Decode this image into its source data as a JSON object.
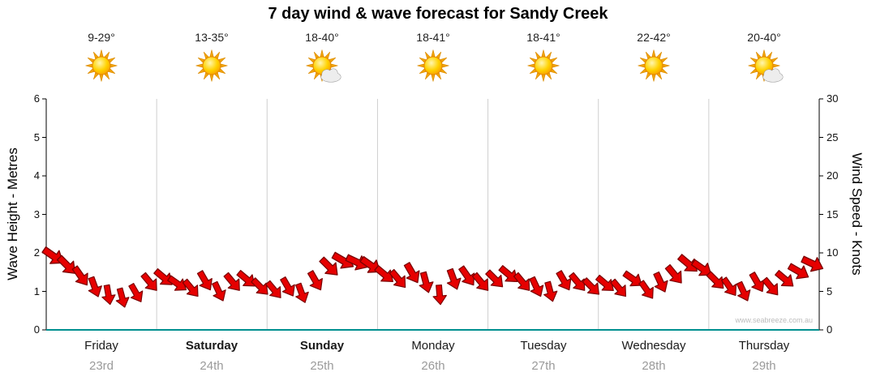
{
  "title": "7 day wind & wave forecast for Sandy Creek",
  "watermark": "www.seabreeze.com.au",
  "days": [
    {
      "name": "Friday",
      "date": "23rd",
      "temp": "9-29°",
      "icon": "sunny",
      "bold": false
    },
    {
      "name": "Saturday",
      "date": "24th",
      "temp": "13-35°",
      "icon": "sunny",
      "bold": true
    },
    {
      "name": "Sunday",
      "date": "25th",
      "temp": "18-40°",
      "icon": "partly-cloudy",
      "bold": true
    },
    {
      "name": "Monday",
      "date": "26th",
      "temp": "18-41°",
      "icon": "sunny",
      "bold": false
    },
    {
      "name": "Tuesday",
      "date": "27th",
      "temp": "18-41°",
      "icon": "sunny",
      "bold": false
    },
    {
      "name": "Wednesday",
      "date": "28th",
      "temp": "22-42°",
      "icon": "sunny",
      "bold": false
    },
    {
      "name": "Thursday",
      "date": "29th",
      "temp": "20-40°",
      "icon": "partly-cloudy",
      "bold": false
    }
  ],
  "chart_data": {
    "type": "scatter",
    "subtype": "wind-direction-arrows",
    "title": "7 day wind & wave forecast for Sandy Creek",
    "x_axis": {
      "categories": [
        "Friday 23rd",
        "Saturday 24th",
        "Sunday 25th",
        "Monday 26th",
        "Tuesday 27th",
        "Wednesday 28th",
        "Thursday 29th"
      ],
      "points_per_day": 8
    },
    "left_axis": {
      "label": "Wave Height - Metres",
      "range": [
        0,
        6
      ],
      "ticks": [
        0,
        1,
        2,
        3,
        4,
        5,
        6
      ]
    },
    "right_axis": {
      "label": "Wind Speed - Knots",
      "range": [
        0,
        30
      ],
      "ticks": [
        0,
        5,
        10,
        15,
        20,
        25,
        30
      ]
    },
    "gridlines": "vertical-day-boundaries",
    "grid_color": "#cfcfcf",
    "axis_color": "#000000",
    "baseline_color": "#009090",
    "series": [
      {
        "name": "Wind speed & direction",
        "marker": "arrow",
        "color": "#e60000",
        "outline_color": "#7a0000",
        "knots": [
          9.6,
          8.4,
          7.0,
          5.6,
          4.6,
          4.2,
          4.8,
          6.2,
          6.8,
          6.0,
          5.4,
          6.4,
          5.0,
          6.2,
          6.6,
          5.6,
          5.2,
          5.6,
          4.8,
          6.4,
          8.2,
          9.0,
          8.8,
          8.4,
          7.2,
          6.6,
          7.4,
          6.2,
          4.6,
          6.6,
          7.0,
          6.2,
          6.6,
          7.2,
          6.2,
          5.6,
          5.0,
          6.4,
          6.2,
          5.6,
          6.0,
          5.4,
          6.6,
          5.2,
          6.2,
          7.2,
          8.6,
          8.0,
          6.4,
          5.6,
          5.0,
          6.2,
          5.6,
          6.6,
          7.6,
          8.6
        ],
        "directions_deg": [
          125,
          135,
          145,
          160,
          170,
          165,
          150,
          140,
          130,
          125,
          140,
          150,
          155,
          140,
          130,
          135,
          140,
          150,
          160,
          150,
          135,
          120,
          115,
          125,
          130,
          140,
          150,
          165,
          175,
          160,
          145,
          140,
          135,
          130,
          140,
          155,
          165,
          150,
          140,
          135,
          130,
          140,
          125,
          145,
          155,
          140,
          130,
          125,
          135,
          145,
          155,
          150,
          140,
          130,
          120,
          115
        ]
      }
    ]
  }
}
